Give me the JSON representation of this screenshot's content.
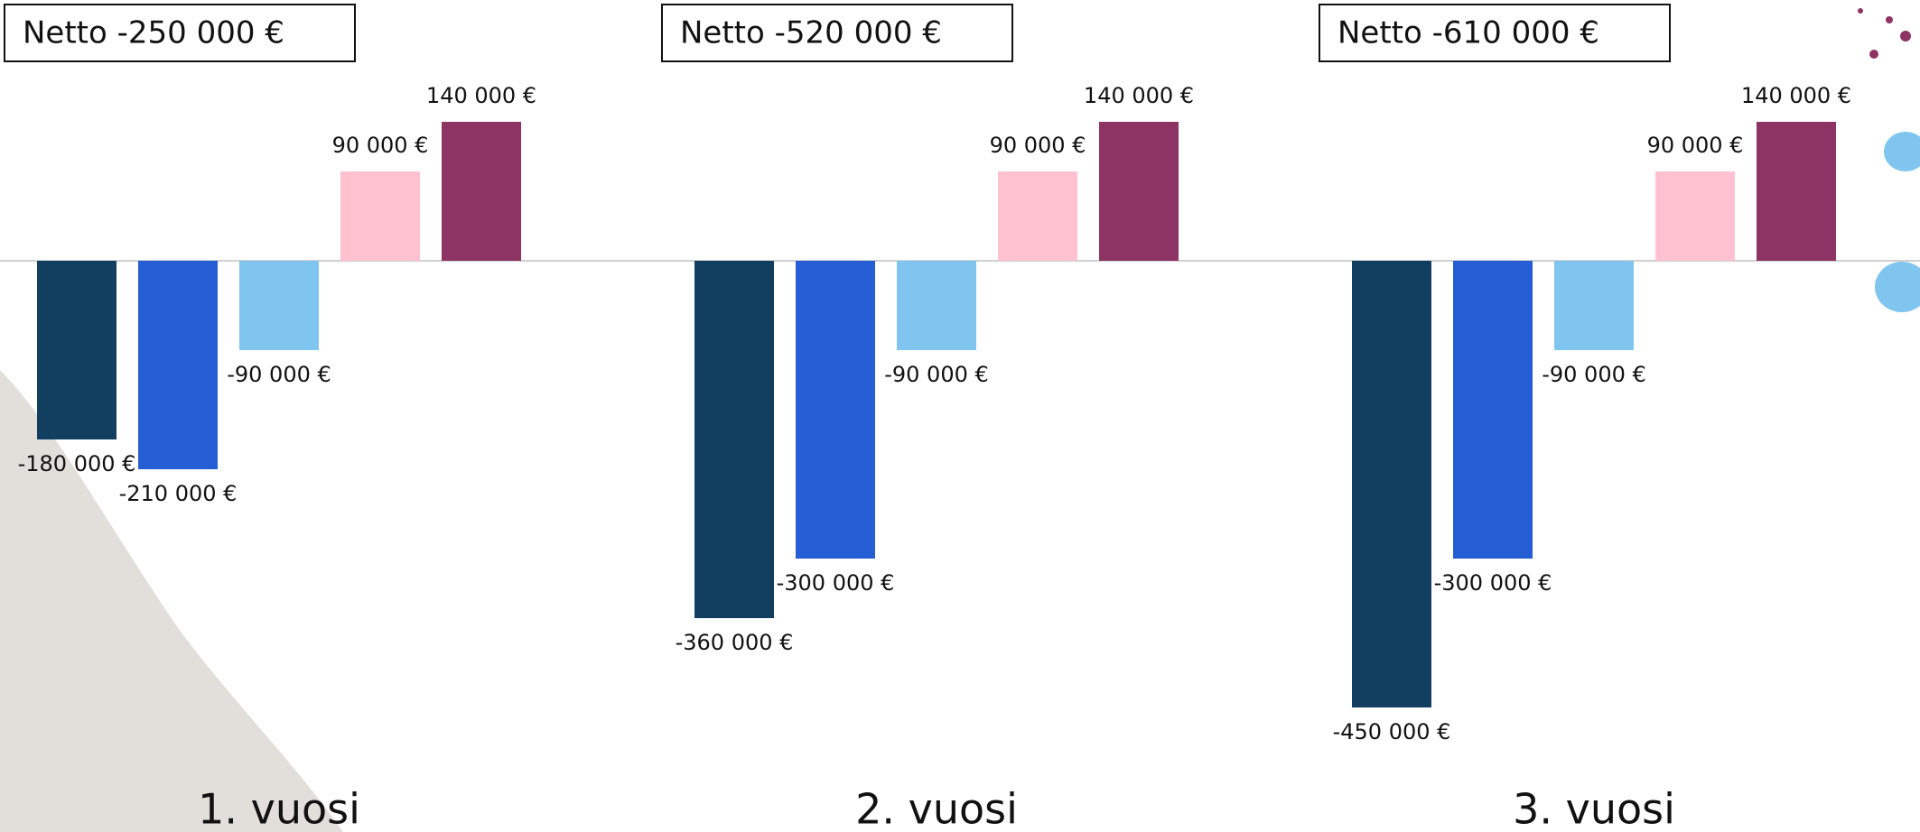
{
  "chart_data": {
    "type": "bar",
    "categories": [
      "1. vuosi",
      "2. vuosi",
      "3. vuosi"
    ],
    "annotations": [
      "Netto -250 000 €",
      "Netto -520 000 €",
      "Netto -610 000 €"
    ],
    "series": [
      {
        "color": "#123e60",
        "values": [
          -180000,
          -360000,
          -450000
        ],
        "value_labels": [
          "-180 000 €",
          "-360 000 €",
          "-450 000 €"
        ]
      },
      {
        "color": "#255ed4",
        "values": [
          -210000,
          -300000,
          -300000
        ],
        "value_labels": [
          "-210 000 €",
          "-300 000 €",
          "-300 000 €"
        ]
      },
      {
        "color": "#7fc5ef",
        "values": [
          -90000,
          -90000,
          -90000
        ],
        "value_labels": [
          "-90 000 €",
          "-90 000 €",
          "-90 000 €"
        ]
      },
      {
        "color": "#ffc0cf",
        "values": [
          90000,
          90000,
          90000
        ],
        "value_labels": [
          "90 000 €",
          "90 000 €",
          "90 000 €"
        ]
      },
      {
        "color": "#8e3465",
        "values": [
          140000,
          140000,
          140000
        ],
        "value_labels": [
          "140 000 €",
          "140 000 €",
          "140 000 €"
        ]
      }
    ]
  }
}
